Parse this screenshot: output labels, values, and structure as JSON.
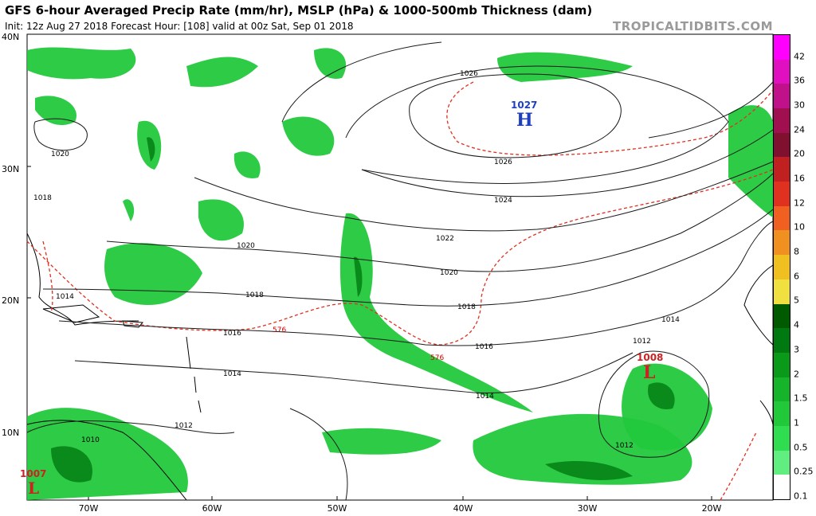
{
  "header": {
    "title": "GFS 6-hour Averaged Precip Rate (mm/hr), MSLP (hPa) & 1000-500mb Thickness (dam)",
    "subtitle": "Init: 12z Aug 27 2018   Forecast Hour: [108]   valid at 00z Sat, Sep 01 2018",
    "source": "TROPICALTIDBITS.COM"
  },
  "axes": {
    "lat_labels": [
      "40N",
      "30N",
      "20N",
      "10N"
    ],
    "lon_labels": [
      "70W",
      "60W",
      "50W",
      "40W",
      "30W",
      "20W"
    ]
  },
  "pressure_centers": [
    {
      "type": "H",
      "value": "1027",
      "color": "#1f3fbf"
    },
    {
      "type": "L",
      "value": "1008",
      "color": "#cc2222"
    },
    {
      "type": "L",
      "value": "1007",
      "color": "#cc2222"
    }
  ],
  "isobar_labels": [
    "1026",
    "1026",
    "1024",
    "1022",
    "1020",
    "1020",
    "1018",
    "1018",
    "1016",
    "1016",
    "1014",
    "1014",
    "1014",
    "1012",
    "1012",
    "1012",
    "1010",
    "1020",
    "1018",
    "1014"
  ],
  "thickness_labels": [
    "576",
    "576"
  ],
  "legend": {
    "labels": [
      "42",
      "36",
      "30",
      "24",
      "20",
      "16",
      "12",
      "10",
      "8",
      "6",
      "5",
      "4",
      "3",
      "2",
      "1.5",
      "1",
      "0.5",
      "0.25",
      "0.1"
    ],
    "colors": [
      "#ff00ff",
      "#e010c0",
      "#c0108a",
      "#a01050",
      "#801030",
      "#c02020",
      "#e03020",
      "#f06020",
      "#f09020",
      "#f0c020",
      "#f0e040",
      "#005a00",
      "#007a10",
      "#0a9a1a",
      "#16b42a",
      "#20c83a",
      "#30dc50",
      "#60ee80",
      "#ffffff"
    ]
  }
}
